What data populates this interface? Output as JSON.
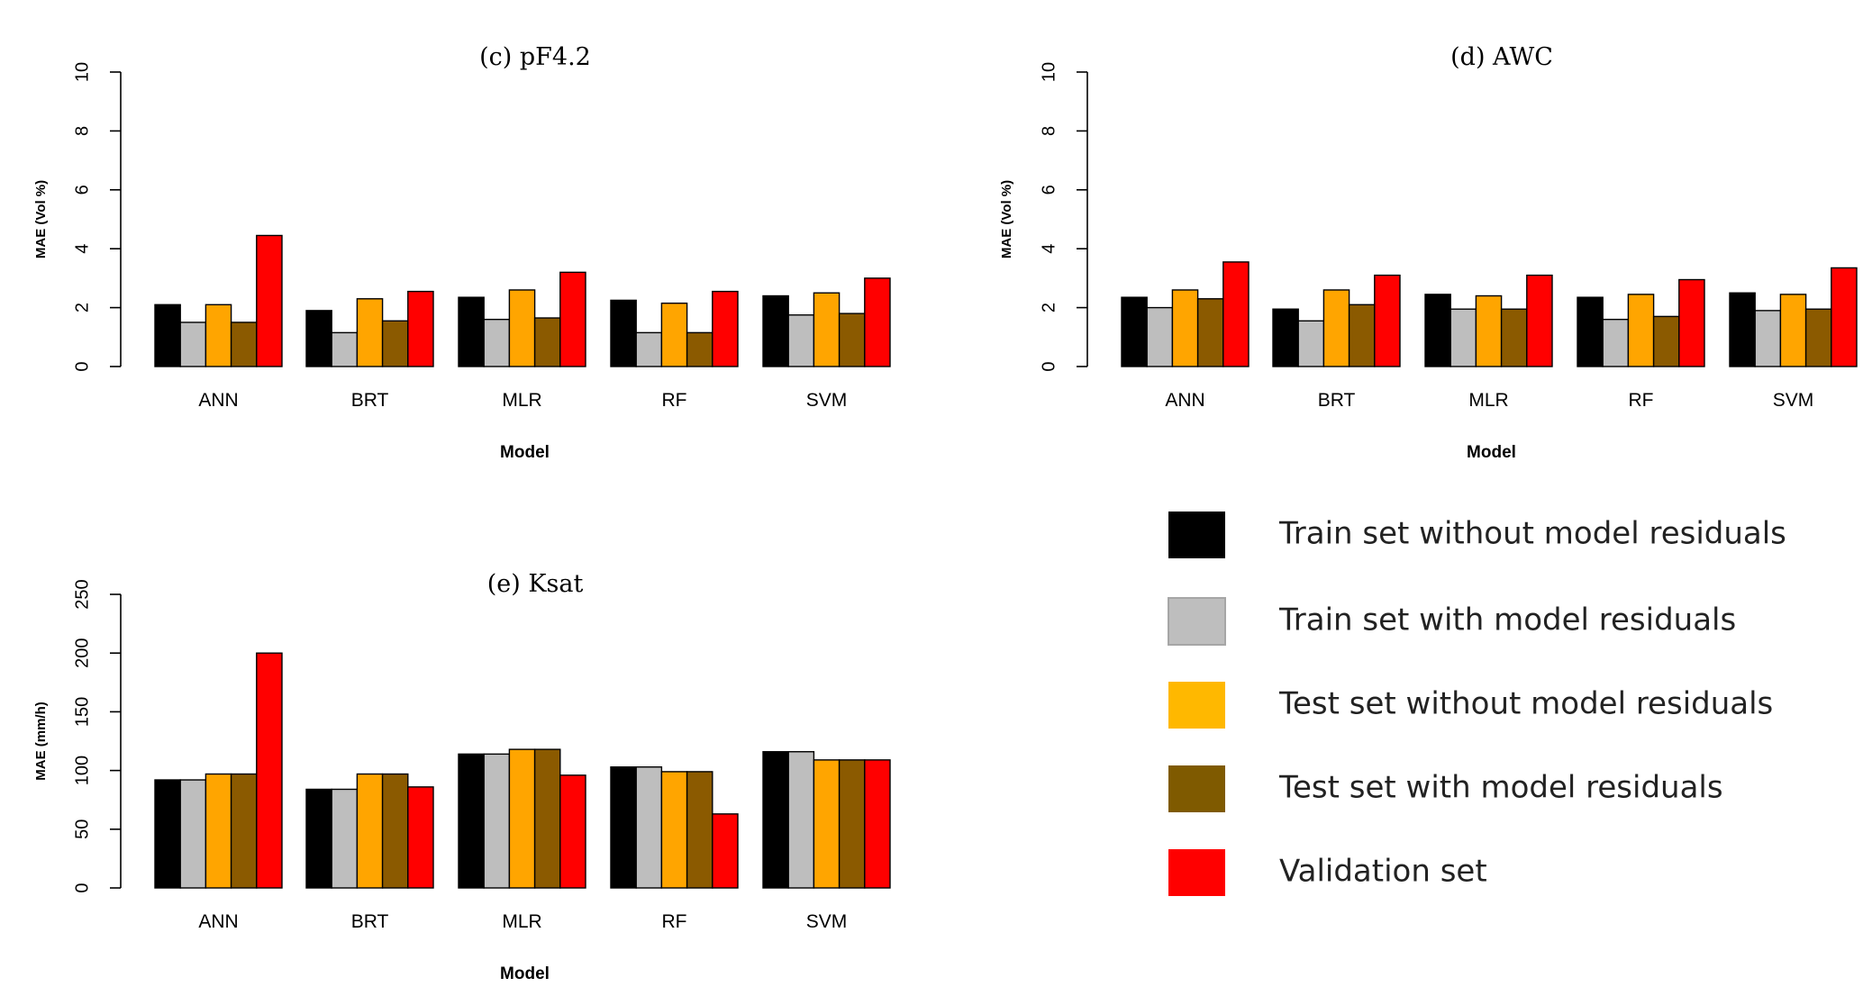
{
  "chart_data": [
    {
      "type": "bar",
      "title": "(c)  pF4.2",
      "xlabel": "Model",
      "ylabel": "MAE (Vol %)",
      "ylim": [
        0,
        10
      ],
      "yticks": [
        "0",
        "2",
        "4",
        "6",
        "8",
        "10"
      ],
      "categories": [
        "ANN",
        "BRT",
        "MLR",
        "RF",
        "SVM"
      ],
      "series": [
        {
          "name": "Train set without model residuals",
          "values": [
            2.1,
            1.9,
            2.35,
            2.25,
            2.4
          ]
        },
        {
          "name": "Train set with model residuals",
          "values": [
            1.5,
            1.15,
            1.6,
            1.15,
            1.75
          ]
        },
        {
          "name": "Test set without model residuals",
          "values": [
            2.1,
            2.3,
            2.6,
            2.15,
            2.5
          ]
        },
        {
          "name": "Test set with model residuals",
          "values": [
            1.5,
            1.55,
            1.65,
            1.15,
            1.8
          ]
        },
        {
          "name": "Validation set",
          "values": [
            4.45,
            2.55,
            3.2,
            2.55,
            3.0
          ]
        }
      ]
    },
    {
      "type": "bar",
      "title": "(d)  AWC",
      "xlabel": "Model",
      "ylabel": "MAE (Vol %)",
      "ylim": [
        0,
        10
      ],
      "yticks": [
        "0",
        "2",
        "4",
        "6",
        "8",
        "10"
      ],
      "categories": [
        "ANN",
        "BRT",
        "MLR",
        "RF",
        "SVM"
      ],
      "series": [
        {
          "name": "Train set without model residuals",
          "values": [
            2.35,
            1.95,
            2.45,
            2.35,
            2.5
          ]
        },
        {
          "name": "Train set with model residuals",
          "values": [
            2.0,
            1.55,
            1.95,
            1.6,
            1.9
          ]
        },
        {
          "name": "Test set without model residuals",
          "values": [
            2.6,
            2.6,
            2.4,
            2.45,
            2.45
          ]
        },
        {
          "name": "Test set with model residuals",
          "values": [
            2.3,
            2.1,
            1.95,
            1.7,
            1.95
          ]
        },
        {
          "name": "Validation set",
          "values": [
            3.55,
            3.1,
            3.1,
            2.95,
            3.35
          ]
        }
      ]
    },
    {
      "type": "bar",
      "title": "(e)  Ksat",
      "xlabel": "Model",
      "ylabel": "MAE (mm/h)",
      "ylim": [
        0,
        250
      ],
      "yticks": [
        "0",
        "50",
        "100",
        "150",
        "200",
        "250"
      ],
      "categories": [
        "ANN",
        "BRT",
        "MLR",
        "RF",
        "SVM"
      ],
      "series": [
        {
          "name": "Train set without model residuals",
          "values": [
            92,
            84,
            114,
            103,
            116
          ]
        },
        {
          "name": "Train set with model residuals",
          "values": [
            92,
            84,
            114,
            103,
            116
          ]
        },
        {
          "name": "Test set without model residuals",
          "values": [
            97,
            97,
            118,
            99,
            109
          ]
        },
        {
          "name": "Test set with model residuals",
          "values": [
            97,
            97,
            118,
            99,
            109
          ]
        },
        {
          "name": "Validation set",
          "values": [
            200,
            86,
            96,
            63,
            109
          ]
        }
      ]
    }
  ],
  "legend": {
    "items": [
      {
        "label": "Train set without model residuals",
        "color": "#000000"
      },
      {
        "label": "Train set with model residuals",
        "color": "#bebebe"
      },
      {
        "label": "Test set without model residuals",
        "color": "#ffb800"
      },
      {
        "label": "Test set with model residuals",
        "color": "#7f5a00"
      },
      {
        "label": "Validation set",
        "color": "#ff0000"
      }
    ]
  },
  "colors": {
    "series": [
      "#000000",
      "#bebebe",
      "#ffa500",
      "#8b5a00",
      "#ff0000"
    ]
  }
}
